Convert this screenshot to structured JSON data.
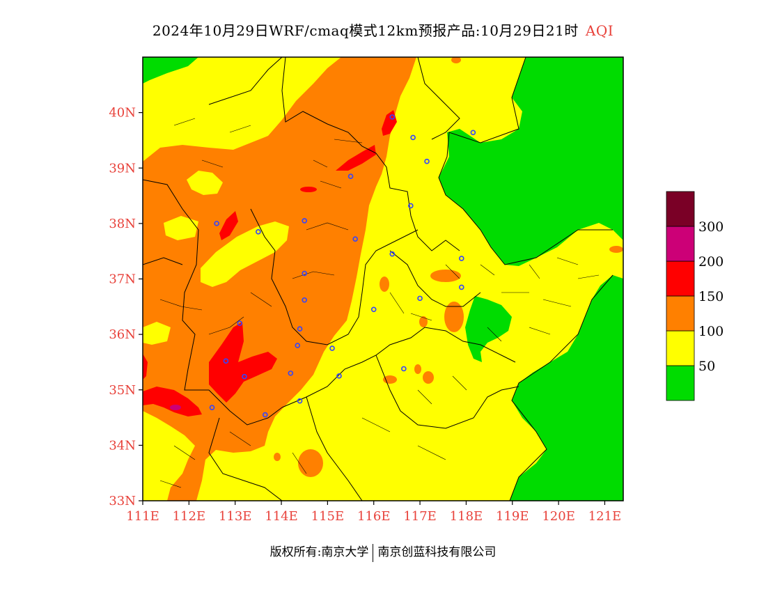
{
  "title": {
    "main": "2024年10月29日WRF/cmaq模式12km预报产品:10月29日21时",
    "variable": "AQI"
  },
  "map": {
    "lon_range": [
      111,
      121.4
    ],
    "lat_range": [
      33,
      41
    ],
    "lon_ticks": [
      "111E",
      "112E",
      "113E",
      "114E",
      "115E",
      "116E",
      "117E",
      "118E",
      "119E",
      "120E",
      "121E"
    ],
    "lat_ticks": [
      "33N",
      "34N",
      "35N",
      "36N",
      "37N",
      "38N",
      "39N",
      "40N"
    ]
  },
  "legend": {
    "colors": [
      "#00dc00",
      "#ffff00",
      "#ff8000",
      "#ff0000",
      "#cc0077",
      "#7a0026"
    ],
    "labels": [
      "50",
      "100",
      "150",
      "200",
      "300"
    ]
  },
  "copyright": {
    "left": "版权所有:南京大学",
    "right": "南京创蓝科技有限公司"
  },
  "stations": [
    [
      112.6,
      38.0
    ],
    [
      113.5,
      37.85
    ],
    [
      114.5,
      38.05
    ],
    [
      115.6,
      37.72
    ],
    [
      116.4,
      37.45
    ],
    [
      114.5,
      37.1
    ],
    [
      114.5,
      36.62
    ],
    [
      114.4,
      36.1
    ],
    [
      113.1,
      36.2
    ],
    [
      112.8,
      35.52
    ],
    [
      113.2,
      35.24
    ],
    [
      114.35,
      35.8
    ],
    [
      114.2,
      35.3
    ],
    [
      114.4,
      34.8
    ],
    [
      113.65,
      34.55
    ],
    [
      115.1,
      35.75
    ],
    [
      115.25,
      35.25
    ],
    [
      116.0,
      36.45
    ],
    [
      116.65,
      35.38
    ],
    [
      117.0,
      36.65
    ],
    [
      117.9,
      36.85
    ],
    [
      117.9,
      37.37
    ],
    [
      117.15,
      39.12
    ],
    [
      116.8,
      38.32
    ],
    [
      115.5,
      38.85
    ],
    [
      116.4,
      39.92
    ],
    [
      116.85,
      39.55
    ],
    [
      118.15,
      39.64
    ],
    [
      112.5,
      34.68
    ]
  ]
}
